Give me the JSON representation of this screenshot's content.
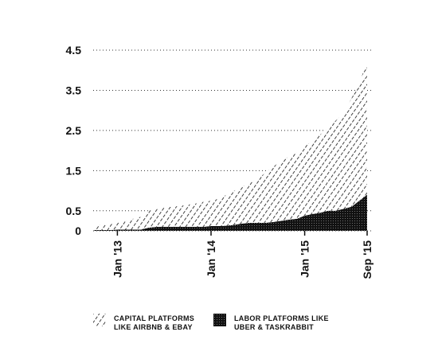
{
  "chart_data": {
    "type": "stacked-area",
    "categories": [
      null,
      null,
      null,
      "Jan '13",
      null,
      null,
      null,
      null,
      null,
      null,
      null,
      null,
      null,
      null,
      null,
      "Jan '14",
      null,
      null,
      null,
      null,
      null,
      null,
      null,
      null,
      null,
      null,
      null,
      "Jan '15",
      null,
      null,
      null,
      null,
      null,
      null,
      null,
      "Sep '15"
    ],
    "series": [
      {
        "name": "LABOR PLATFORMS LIKE UBER & TASKRABBIT",
        "values": [
          0.02,
          0.02,
          0.02,
          0.03,
          0.03,
          0.03,
          0.03,
          0.08,
          0.1,
          0.1,
          0.1,
          0.1,
          0.1,
          0.1,
          0.1,
          0.12,
          0.12,
          0.13,
          0.15,
          0.18,
          0.2,
          0.2,
          0.2,
          0.22,
          0.25,
          0.28,
          0.3,
          0.38,
          0.42,
          0.45,
          0.5,
          0.5,
          0.55,
          0.6,
          0.75,
          0.9
        ]
      },
      {
        "name": "CAPITAL PLATFORMS LIKE AIRBNB & EBAY",
        "values": [
          0.1,
          0.13,
          0.15,
          0.17,
          0.22,
          0.27,
          0.32,
          0.42,
          0.45,
          0.48,
          0.5,
          0.52,
          0.55,
          0.58,
          0.62,
          0.63,
          0.68,
          0.77,
          0.85,
          0.92,
          1.0,
          1.1,
          1.25,
          1.38,
          1.5,
          1.57,
          1.65,
          1.72,
          1.83,
          1.95,
          2.05,
          2.25,
          2.4,
          2.7,
          2.95,
          3.3
        ]
      }
    ],
    "ylim": [
      0,
      4.5
    ],
    "yticks": [
      0,
      0.5,
      1.5,
      2.5,
      3.5,
      4.5
    ],
    "grid": true
  }
}
